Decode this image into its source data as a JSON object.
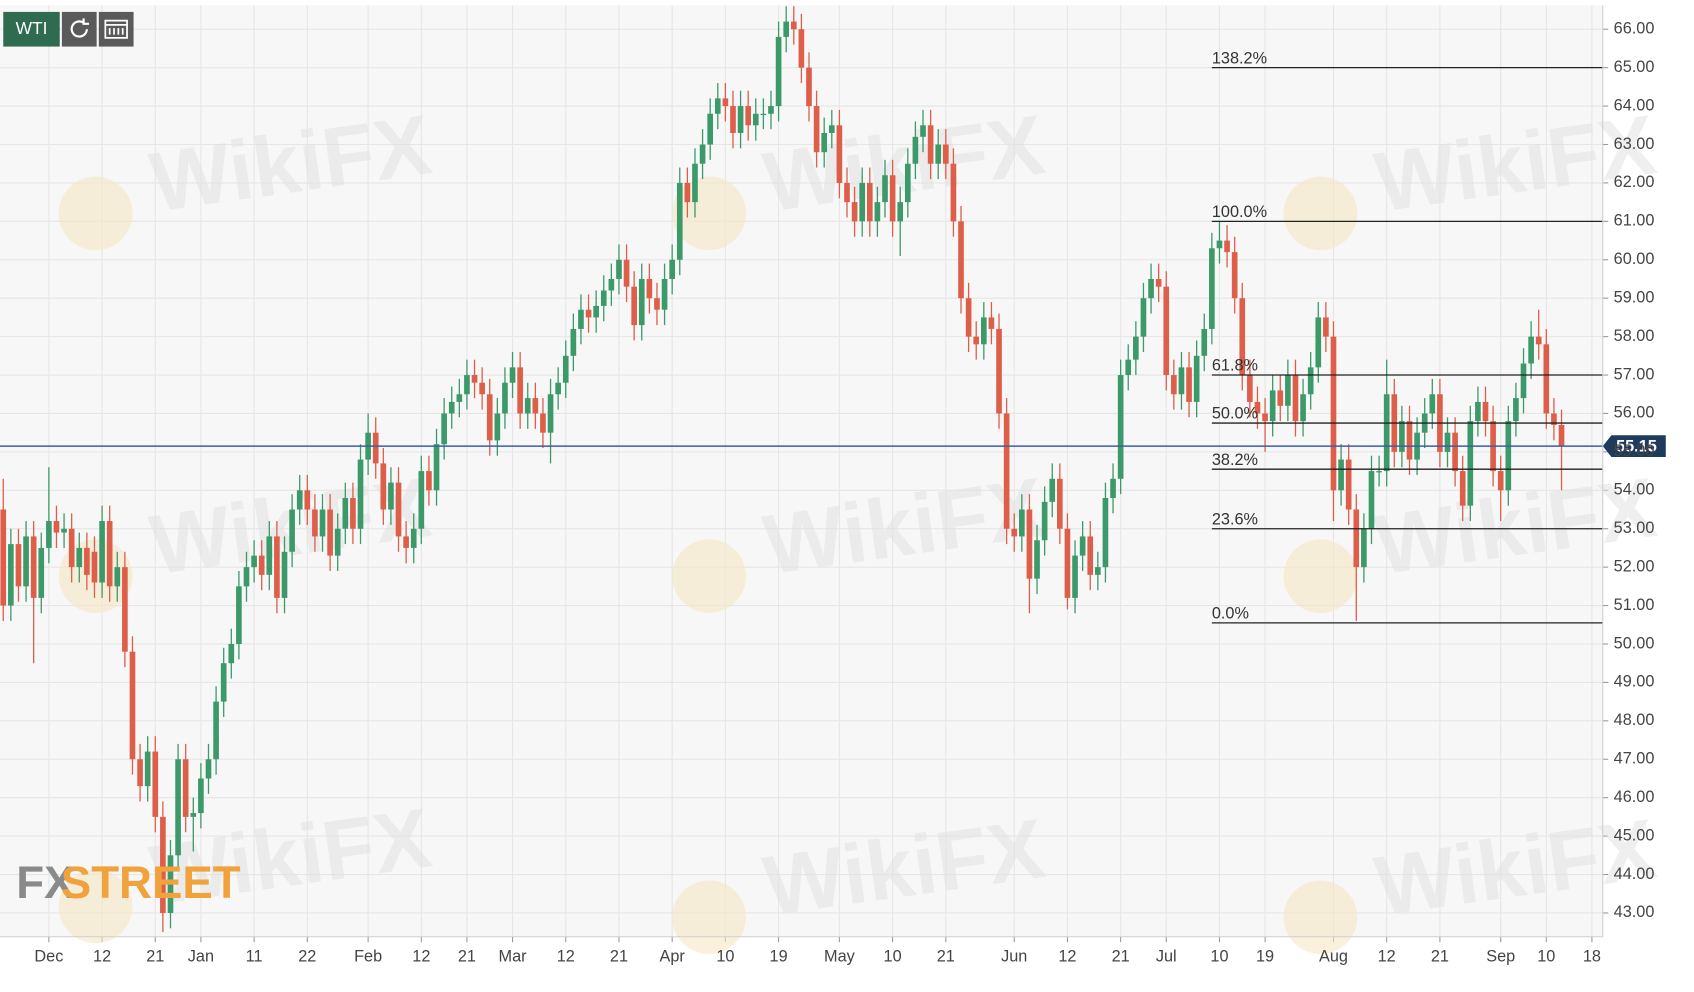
{
  "chart_data": {
    "type": "candlestick",
    "symbol": "WTI",
    "watermark": "WikiFX",
    "logo": {
      "left": "FX",
      "right": "STREET"
    },
    "up_color": "#3c9a6a",
    "down_color": "#dd5f49",
    "grid": true,
    "ylim": [
      42.38,
      66.62
    ],
    "yticks": [
      {
        "value": 43,
        "label": "43.00"
      },
      {
        "value": 44,
        "label": "44.00"
      },
      {
        "value": 45,
        "label": "45.00"
      },
      {
        "value": 46,
        "label": "46.00"
      },
      {
        "value": 47,
        "label": "47.00"
      },
      {
        "value": 48,
        "label": "48.00"
      },
      {
        "value": 49,
        "label": "49.00"
      },
      {
        "value": 50,
        "label": "50.00"
      },
      {
        "value": 51,
        "label": "51.00"
      },
      {
        "value": 52,
        "label": "52.00"
      },
      {
        "value": 53,
        "label": "53.00"
      },
      {
        "value": 54,
        "label": "54.00"
      },
      {
        "value": 55,
        "label": "55.00"
      },
      {
        "value": 56,
        "label": "56.00"
      },
      {
        "value": 57,
        "label": "57.00"
      },
      {
        "value": 58,
        "label": "58.00"
      },
      {
        "value": 59,
        "label": "59.00"
      },
      {
        "value": 60,
        "label": "60.00"
      },
      {
        "value": 61,
        "label": "61.00"
      },
      {
        "value": 62,
        "label": "62.00"
      },
      {
        "value": 63,
        "label": "63.00"
      },
      {
        "value": 64,
        "label": "64.00"
      },
      {
        "value": 65,
        "label": "65.00"
      },
      {
        "value": 66,
        "label": "66.00"
      }
    ],
    "last_price": 55.15,
    "last_price_color": "#3b5ea8",
    "fibonacci": [
      {
        "label": "138.2%",
        "value": 65.0
      },
      {
        "label": "100.0%",
        "value": 61.0
      },
      {
        "label": "61.8%",
        "value": 57.0
      },
      {
        "label": "50.0%",
        "value": 55.75
      },
      {
        "label": "38.2%",
        "value": 54.55
      },
      {
        "label": "23.6%",
        "value": 53.0
      },
      {
        "label": "0.0%",
        "value": 50.55
      }
    ],
    "categories": [
      null,
      null,
      null,
      null,
      null,
      null,
      "Dec",
      null,
      null,
      null,
      null,
      null,
      null,
      "12",
      null,
      null,
      null,
      null,
      null,
      null,
      "21",
      null,
      null,
      null,
      null,
      null,
      "Jan",
      null,
      null,
      null,
      null,
      null,
      null,
      "11",
      null,
      null,
      null,
      null,
      null,
      null,
      "22",
      null,
      null,
      null,
      null,
      null,
      null,
      null,
      "Feb",
      null,
      null,
      null,
      null,
      null,
      null,
      "12",
      null,
      null,
      null,
      null,
      null,
      "21",
      null,
      null,
      null,
      null,
      null,
      "Mar",
      null,
      null,
      null,
      null,
      null,
      null,
      "12",
      null,
      null,
      null,
      null,
      null,
      null,
      "21",
      null,
      null,
      null,
      null,
      null,
      null,
      "Apr",
      null,
      null,
      null,
      null,
      null,
      null,
      "10",
      null,
      null,
      null,
      null,
      null,
      null,
      "19",
      null,
      null,
      null,
      null,
      null,
      null,
      null,
      "May",
      null,
      null,
      null,
      null,
      null,
      null,
      "10",
      null,
      null,
      null,
      null,
      null,
      null,
      "21",
      null,
      null,
      null,
      null,
      null,
      null,
      null,
      null,
      "Jun",
      null,
      null,
      null,
      null,
      null,
      null,
      "12",
      null,
      null,
      null,
      null,
      null,
      null,
      "21",
      null,
      null,
      null,
      null,
      null,
      "Jul",
      null,
      null,
      null,
      null,
      null,
      null,
      "10",
      null,
      null,
      null,
      null,
      null,
      "19",
      null,
      null,
      null,
      null,
      null,
      null,
      null,
      null,
      "Aug",
      null,
      null,
      null,
      null,
      null,
      null,
      "12",
      null,
      null,
      null,
      null,
      null,
      null,
      "21",
      null,
      null,
      null,
      null,
      null,
      null,
      null,
      "Sep",
      null,
      null,
      null,
      null,
      null,
      "10",
      null,
      null,
      null,
      null,
      null,
      "18"
    ],
    "open": [
      53.5,
      51.0,
      52.6,
      51.5,
      52.8,
      51.2,
      52.5,
      53.2,
      52.9,
      53.0,
      52.0,
      52.5,
      52.4,
      51.6,
      53.2,
      51.5,
      52.0,
      49.8,
      47.0,
      46.3,
      47.2,
      45.5,
      43.0,
      44.5,
      47.0,
      45.5,
      45.6,
      46.5,
      47.0,
      48.5,
      49.5,
      50.0,
      51.5,
      52.0,
      52.3,
      51.8,
      52.8,
      51.2,
      52.4,
      53.5,
      54.0,
      53.5,
      52.8,
      53.5,
      52.3,
      53.0,
      53.8,
      53.0,
      54.8,
      55.5,
      54.7,
      53.5,
      54.2,
      52.8,
      52.5,
      53.0,
      54.5,
      54.0,
      55.2,
      56.0,
      56.3,
      56.5,
      57.0,
      56.8,
      56.5,
      55.3,
      56.0,
      56.8,
      57.2,
      56.0,
      56.4,
      56.0,
      55.5,
      56.5,
      56.8,
      57.5,
      58.2,
      58.7,
      58.5,
      58.8,
      59.2,
      59.5,
      60.0,
      59.3,
      58.3,
      59.5,
      59.0,
      58.7,
      59.5,
      60.0,
      62.0,
      61.5,
      62.5,
      63.0,
      63.8,
      64.2,
      64.0,
      63.3,
      64.0,
      63.5,
      63.8,
      63.8,
      64.0,
      65.8,
      66.2,
      66.0,
      65.0,
      64.0,
      62.8,
      63.3,
      63.5,
      62.0,
      61.5,
      61.0,
      62.0,
      61.0,
      61.5,
      62.2,
      61.0,
      61.5,
      62.5,
      63.2,
      63.5,
      62.5,
      63.0,
      62.5,
      61.0,
      59.0,
      58.0,
      57.8,
      58.5,
      58.2,
      56.0,
      53.0,
      52.8,
      53.5,
      51.7,
      52.7,
      53.7,
      54.3,
      53.0,
      51.2,
      52.3,
      52.8,
      51.8,
      52.0,
      53.8,
      54.3,
      57.0,
      57.4,
      58.0,
      59.0,
      59.5,
      59.3,
      57.0,
      56.5,
      57.2,
      56.3,
      57.5,
      58.2,
      60.3,
      60.5,
      60.2,
      59.0,
      57.0,
      56.3,
      56.0,
      55.8,
      56.6,
      56.2,
      57.0,
      55.8,
      56.5,
      57.2,
      58.5,
      58.0,
      54.0,
      54.8,
      53.5,
      52.0,
      53.0,
      54.5,
      54.5,
      56.5,
      55.0,
      55.8,
      54.8,
      55.5,
      56.0,
      56.5,
      55.0,
      55.5,
      54.5,
      53.6,
      55.8,
      56.3,
      55.8,
      54.5,
      54.0,
      55.8,
      56.4,
      57.3,
      58.0,
      57.8,
      56.0,
      55.7,
      null,
      null,
      null,
      null
    ],
    "high": [
      54.3,
      53.0,
      53.0,
      53.2,
      53.2,
      52.9,
      54.6,
      53.6,
      53.4,
      53.4,
      52.9,
      52.9,
      52.8,
      53.6,
      53.6,
      52.4,
      52.4,
      50.2,
      47.4,
      47.6,
      47.6,
      45.9,
      44.9,
      47.4,
      47.4,
      46.0,
      46.9,
      47.4,
      48.9,
      49.9,
      50.4,
      51.9,
      52.4,
      52.7,
      52.7,
      53.2,
      53.2,
      52.8,
      53.9,
      54.4,
      54.4,
      53.9,
      53.9,
      53.9,
      53.4,
      54.2,
      54.2,
      55.2,
      56.0,
      55.9,
      55.1,
      54.6,
      54.6,
      53.2,
      53.4,
      54.9,
      54.9,
      55.6,
      56.4,
      56.7,
      56.9,
      57.4,
      57.4,
      57.2,
      56.9,
      56.4,
      57.2,
      57.6,
      57.6,
      56.8,
      56.8,
      56.4,
      56.9,
      57.2,
      57.9,
      58.6,
      59.1,
      59.1,
      59.2,
      59.6,
      59.9,
      60.4,
      60.4,
      59.7,
      59.9,
      59.9,
      59.4,
      59.9,
      60.4,
      62.4,
      62.4,
      62.9,
      63.4,
      64.2,
      64.6,
      64.6,
      64.4,
      64.4,
      64.4,
      64.2,
      64.2,
      64.4,
      66.2,
      66.6,
      66.6,
      66.4,
      65.4,
      64.4,
      63.7,
      63.9,
      63.9,
      62.4,
      61.9,
      62.4,
      62.4,
      61.9,
      62.6,
      62.6,
      61.9,
      62.9,
      63.6,
      63.9,
      63.9,
      63.4,
      63.4,
      62.9,
      61.4,
      59.4,
      58.4,
      58.9,
      58.9,
      58.6,
      56.4,
      53.4,
      53.9,
      53.9,
      53.1,
      54.1,
      54.7,
      54.7,
      53.4,
      52.7,
      53.2,
      53.2,
      52.4,
      54.2,
      54.7,
      57.4,
      57.8,
      58.4,
      59.4,
      59.9,
      59.9,
      59.7,
      57.4,
      57.6,
      57.6,
      57.9,
      58.6,
      60.7,
      61.0,
      60.9,
      60.6,
      59.4,
      57.4,
      56.7,
      56.4,
      57.0,
      57.0,
      57.4,
      57.4,
      56.9,
      57.6,
      58.9,
      58.9,
      58.4,
      55.2,
      55.2,
      53.9,
      53.4,
      54.9,
      54.9,
      57.4,
      56.9,
      56.2,
      56.2,
      55.9,
      56.4,
      56.9,
      56.9,
      55.9,
      55.9,
      54.9,
      56.2,
      56.7,
      56.7,
      56.2,
      54.9,
      56.2,
      56.8,
      57.7,
      58.4,
      58.7,
      58.2,
      56.4,
      56.1,
      null,
      null,
      null,
      null
    ],
    "low": [
      50.6,
      50.6,
      51.1,
      51.1,
      49.5,
      50.8,
      52.1,
      52.5,
      52.5,
      51.6,
      51.6,
      51.4,
      51.2,
      51.2,
      51.1,
      51.1,
      49.4,
      46.6,
      45.9,
      45.9,
      45.1,
      42.5,
      42.6,
      44.1,
      45.1,
      44.6,
      45.2,
      46.1,
      46.6,
      48.1,
      49.1,
      49.6,
      51.1,
      51.6,
      51.4,
      51.4,
      50.8,
      50.8,
      52.0,
      53.1,
      53.1,
      52.4,
      52.4,
      51.9,
      51.9,
      52.6,
      52.6,
      52.6,
      54.4,
      54.3,
      53.1,
      53.1,
      52.4,
      52.1,
      52.1,
      52.6,
      53.6,
      53.6,
      54.8,
      55.6,
      55.9,
      56.1,
      56.4,
      56.1,
      54.9,
      54.9,
      55.6,
      56.4,
      55.6,
      55.6,
      55.6,
      55.1,
      54.7,
      56.1,
      56.4,
      57.1,
      57.8,
      58.1,
      58.1,
      58.4,
      58.8,
      59.1,
      58.9,
      57.9,
      57.9,
      58.6,
      58.3,
      58.3,
      59.1,
      59.6,
      61.1,
      61.1,
      62.1,
      62.6,
      63.4,
      63.6,
      62.9,
      62.9,
      63.1,
      63.1,
      63.4,
      63.4,
      63.6,
      65.4,
      65.6,
      64.6,
      63.6,
      62.4,
      62.4,
      62.9,
      61.6,
      61.1,
      60.6,
      60.6,
      60.6,
      60.6,
      61.1,
      60.6,
      60.1,
      61.1,
      62.1,
      62.8,
      62.1,
      62.1,
      62.1,
      60.6,
      58.6,
      57.6,
      57.4,
      57.4,
      57.8,
      55.6,
      52.6,
      52.4,
      52.4,
      50.8,
      51.3,
      52.3,
      53.3,
      52.6,
      50.9,
      50.8,
      51.9,
      51.4,
      51.4,
      51.6,
      53.4,
      53.9,
      56.6,
      57.0,
      57.6,
      58.6,
      58.9,
      56.6,
      56.1,
      56.1,
      55.9,
      55.9,
      57.1,
      57.8,
      59.9,
      59.8,
      58.6,
      56.6,
      55.9,
      55.6,
      55.0,
      55.4,
      55.8,
      55.8,
      55.4,
      55.4,
      56.1,
      56.8,
      57.6,
      53.2,
      53.6,
      53.1,
      50.6,
      51.6,
      52.6,
      54.1,
      54.1,
      54.6,
      54.6,
      54.4,
      54.4,
      55.1,
      55.6,
      54.6,
      54.6,
      54.1,
      53.2,
      53.2,
      55.4,
      55.4,
      54.1,
      53.2,
      53.6,
      55.4,
      56.0,
      56.9,
      57.4,
      55.6,
      55.3,
      54.0,
      null,
      null,
      null,
      null
    ],
    "close": [
      51.0,
      52.6,
      51.5,
      52.8,
      51.2,
      52.5,
      53.2,
      52.9,
      53.0,
      52.0,
      52.5,
      51.8,
      51.6,
      53.2,
      51.5,
      52.0,
      49.8,
      47.0,
      46.3,
      47.2,
      45.5,
      43.0,
      44.5,
      47.0,
      45.5,
      45.6,
      46.5,
      47.0,
      48.5,
      49.5,
      50.0,
      51.5,
      52.0,
      52.3,
      51.8,
      52.8,
      51.2,
      52.4,
      53.5,
      54.0,
      53.5,
      52.8,
      53.5,
      52.3,
      53.0,
      53.8,
      53.0,
      54.8,
      55.5,
      54.7,
      53.5,
      54.2,
      52.8,
      52.5,
      53.0,
      54.5,
      54.0,
      55.2,
      56.0,
      56.3,
      56.5,
      57.0,
      56.8,
      56.5,
      55.3,
      56.0,
      56.8,
      57.2,
      56.0,
      56.4,
      56.0,
      55.5,
      56.5,
      56.8,
      57.5,
      58.2,
      58.7,
      58.5,
      58.8,
      59.2,
      59.5,
      60.0,
      59.3,
      58.3,
      59.5,
      59.0,
      58.7,
      59.5,
      60.0,
      62.0,
      61.5,
      62.5,
      63.0,
      63.8,
      64.2,
      64.0,
      63.3,
      64.0,
      63.5,
      63.8,
      63.8,
      64.0,
      65.8,
      66.2,
      66.0,
      65.0,
      64.0,
      62.8,
      63.3,
      63.5,
      62.0,
      61.5,
      61.0,
      62.0,
      61.0,
      61.5,
      62.2,
      61.0,
      61.5,
      62.5,
      63.2,
      63.5,
      62.5,
      63.0,
      62.5,
      61.0,
      59.0,
      58.0,
      57.8,
      58.5,
      58.2,
      56.0,
      53.0,
      52.8,
      53.5,
      51.7,
      52.7,
      53.7,
      54.3,
      53.0,
      51.2,
      52.3,
      52.8,
      51.8,
      52.0,
      53.8,
      54.3,
      57.0,
      57.4,
      58.0,
      59.0,
      59.5,
      59.3,
      57.0,
      56.5,
      57.2,
      56.3,
      57.5,
      58.2,
      60.3,
      60.5,
      60.2,
      59.0,
      57.0,
      56.3,
      56.0,
      55.8,
      56.6,
      56.2,
      57.0,
      55.8,
      56.5,
      57.2,
      58.5,
      58.0,
      54.0,
      54.8,
      53.5,
      52.0,
      53.0,
      54.5,
      54.5,
      56.5,
      55.0,
      55.8,
      54.8,
      55.5,
      56.0,
      56.5,
      55.0,
      55.5,
      54.5,
      53.6,
      55.8,
      56.3,
      55.8,
      54.5,
      54.0,
      55.8,
      56.4,
      57.3,
      58.0,
      57.8,
      56.0,
      55.7,
      55.15,
      null,
      null,
      null,
      null
    ]
  }
}
